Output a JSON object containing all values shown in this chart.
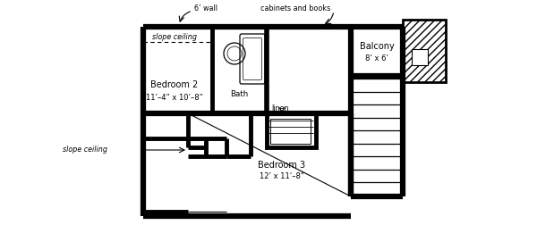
{
  "bg_color": "#ffffff",
  "labels": {
    "bedroom2": "Bedroom 2",
    "bedroom2_dim": "11’–4” x 10’–8”",
    "bedroom3": "Bedroom 3",
    "bedroom3_dim": "12’ x 11’–8”",
    "bath": "Bath",
    "balcony": "Balcony",
    "balcony_dim": "8’ x 6’",
    "linen": "linen",
    "slope1": "slope ceiling",
    "slope2": "slope ceiling",
    "wall_annot": "6’ wall",
    "cabinet_annot": "cabinets and books"
  },
  "wall_lw": 3.5,
  "thin_lw": 0.8,
  "figsize": [
    6.0,
    2.52
  ],
  "dpi": 100
}
